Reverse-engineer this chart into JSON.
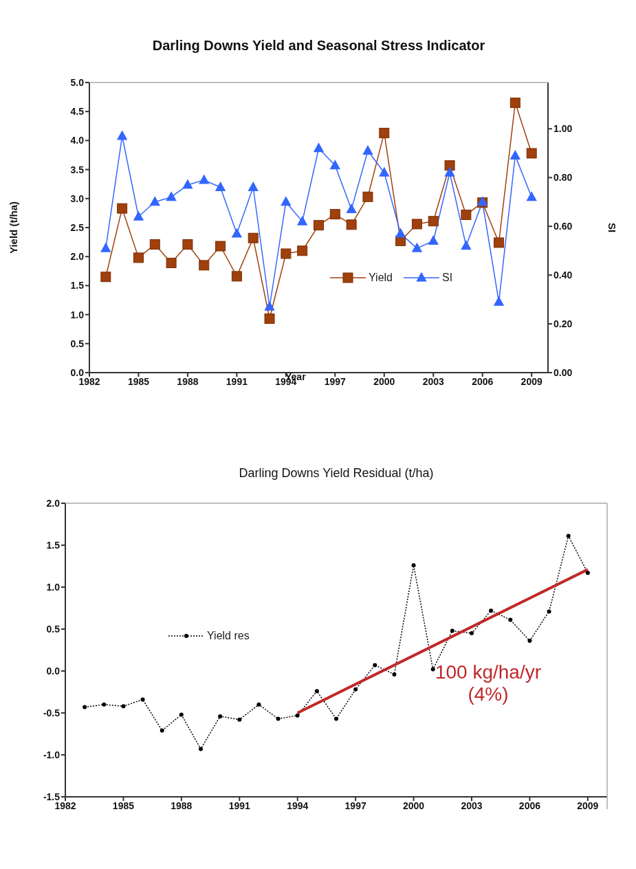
{
  "chart_data": [
    {
      "type": "line",
      "title": "Darling Downs Yield and Seasonal Stress Indicator",
      "xlabel": "Year",
      "ylabel": "Yield (t/ha)",
      "y2label": "SI",
      "x": [
        1983,
        1984,
        1985,
        1986,
        1987,
        1988,
        1989,
        1990,
        1991,
        1992,
        1993,
        1994,
        1995,
        1996,
        1997,
        1998,
        1999,
        2000,
        2001,
        2002,
        2003,
        2004,
        2005,
        2006,
        2007,
        2008,
        2009
      ],
      "series": [
        {
          "name": "Yield",
          "color": "#a0400c",
          "marker": "square",
          "values": [
            1.65,
            2.83,
            1.98,
            2.21,
            1.89,
            2.21,
            1.85,
            2.18,
            1.66,
            2.32,
            0.93,
            2.05,
            2.1,
            2.54,
            2.73,
            2.55,
            3.03,
            4.13,
            2.27,
            2.56,
            2.61,
            3.57,
            2.72,
            2.93,
            2.24,
            4.65,
            3.78
          ]
        },
        {
          "name": "SI",
          "color": "#3366ff",
          "marker": "triangle",
          "axis": "y2",
          "values": [
            0.51,
            0.97,
            0.64,
            0.7,
            0.72,
            0.77,
            0.79,
            0.76,
            0.57,
            0.76,
            0.27,
            0.7,
            0.62,
            0.92,
            0.85,
            0.67,
            0.91,
            0.82,
            0.57,
            0.51,
            0.54,
            0.82,
            0.52,
            0.7,
            0.29,
            0.89,
            0.72
          ]
        }
      ],
      "xlim": [
        1982,
        2010
      ],
      "xticks": [
        1982,
        1985,
        1988,
        1991,
        1994,
        1997,
        2000,
        2003,
        2006,
        2009
      ],
      "ylim": [
        0,
        5
      ],
      "yticks": [
        {
          "value": 0,
          "label": "0.0"
        },
        {
          "value": 0.5,
          "label": "0.5"
        },
        {
          "value": 1,
          "label": "1.0"
        },
        {
          "value": 1.5,
          "label": "1.5"
        },
        {
          "value": 2,
          "label": "2.0"
        },
        {
          "value": 2.5,
          "label": "2.5"
        },
        {
          "value": 3,
          "label": "3.0"
        },
        {
          "value": 3.5,
          "label": "3.5"
        },
        {
          "value": 4,
          "label": "4.0"
        },
        {
          "value": 4.5,
          "label": "4.5"
        },
        {
          "value": 5,
          "label": "5.0"
        }
      ],
      "y2lim": [
        0,
        1.19
      ],
      "y2ticks": [
        {
          "value": 0,
          "label": "0.00"
        },
        {
          "value": 0.2,
          "label": "0.20"
        },
        {
          "value": 0.4,
          "label": "0.40"
        },
        {
          "value": 0.6,
          "label": "0.60"
        },
        {
          "value": 0.8,
          "label": "0.80"
        },
        {
          "value": 1,
          "label": "1.00"
        }
      ],
      "legend": "right",
      "line_style": "solid"
    },
    {
      "type": "line",
      "title": "Darling Downs Yield Residual (t/ha)",
      "x": [
        1983,
        1984,
        1985,
        1986,
        1987,
        1988,
        1989,
        1990,
        1991,
        1992,
        1993,
        1994,
        1995,
        1996,
        1997,
        1998,
        1999,
        2000,
        2001,
        2002,
        2003,
        2004,
        2005,
        2006,
        2007,
        2008,
        2009
      ],
      "series": [
        {
          "name": "Yield res",
          "color": "#000000",
          "marker": "circle",
          "line_style": "dotted",
          "values": [
            -0.43,
            -0.4,
            -0.42,
            -0.34,
            -0.71,
            -0.52,
            -0.93,
            -0.54,
            -0.58,
            -0.4,
            -0.57,
            -0.53,
            -0.24,
            -0.57,
            -0.22,
            0.07,
            -0.04,
            1.26,
            0.02,
            0.48,
            0.45,
            0.72,
            0.61,
            0.36,
            0.71,
            1.61,
            1.17
          ]
        },
        {
          "type": "line",
          "color": "#c0282a",
          "marker": "none",
          "line_style": "solid",
          "x": [
            1994,
            2009
          ],
          "values": [
            -0.5,
            1.21
          ]
        }
      ],
      "annotations": [
        "100 kg/ha/yr\n(4%)"
      ],
      "xlim": [
        1982,
        2010
      ],
      "xticks": [
        1982,
        1985,
        1988,
        1991,
        1994,
        1997,
        2000,
        2003,
        2006,
        2009
      ],
      "ylim": [
        -1.5,
        2
      ],
      "yticks": [
        {
          "value": -1.5,
          "label": "-1.5"
        },
        {
          "value": -1,
          "label": "-1.0"
        },
        {
          "value": -0.5,
          "label": "-0.5"
        },
        {
          "value": 0,
          "label": "0.0"
        },
        {
          "value": 0.5,
          "label": "0.5"
        },
        {
          "value": 1,
          "label": "1.0"
        },
        {
          "value": 1.5,
          "label": "1.5"
        },
        {
          "value": 2,
          "label": "2.0"
        }
      ],
      "legend": "left"
    }
  ]
}
